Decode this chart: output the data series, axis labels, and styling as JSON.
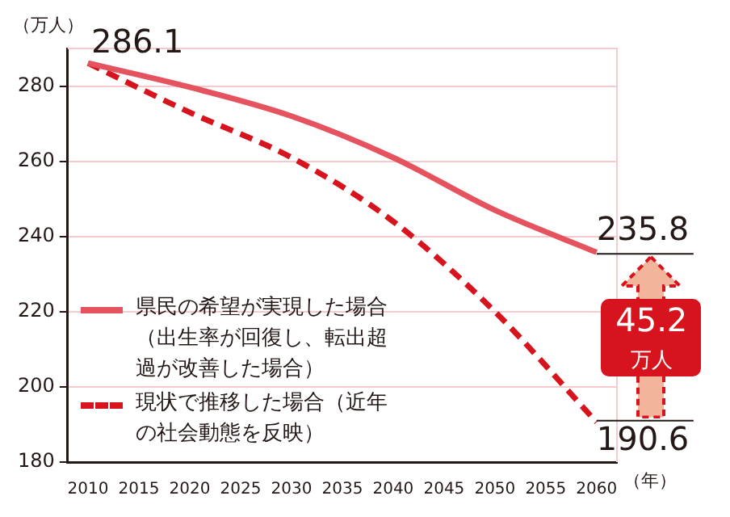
{
  "chart_data": {
    "type": "line",
    "ylabel": "（万人）",
    "xlabel": "（年）",
    "x": [
      2010,
      2020,
      2030,
      2040,
      2050,
      2060
    ],
    "series": [
      {
        "name": "県民の希望が実現した場合（出生率が回復し、転出超過が改善した場合）",
        "color": "#e5545e",
        "line_style": "solid",
        "values": [
          286.1,
          279.7,
          272,
          261,
          247,
          235.8
        ],
        "value_labels": [
          "286.1",
          null,
          null,
          null,
          null,
          "235.8"
        ]
      },
      {
        "name": "現状で推移した場合（近年の社会動態を反映）",
        "color": "#d7141e",
        "line_style": "dashed",
        "values": [
          286.1,
          273,
          261,
          244,
          220,
          190.6
        ],
        "value_labels": [
          null,
          null,
          null,
          null,
          null,
          "190.6"
        ]
      }
    ],
    "annotations": [
      "45.2\n万人"
    ],
    "xlim": [
      2008,
      2062
    ],
    "xticks": [
      2010,
      2015,
      2020,
      2025,
      2030,
      2035,
      2040,
      2045,
      2050,
      2055,
      2060
    ],
    "ylim": [
      180,
      290
    ],
    "yticks": [
      180,
      200,
      220,
      240,
      260,
      280
    ],
    "grid": "y",
    "legend": "bottom left",
    "marker": "none"
  }
}
